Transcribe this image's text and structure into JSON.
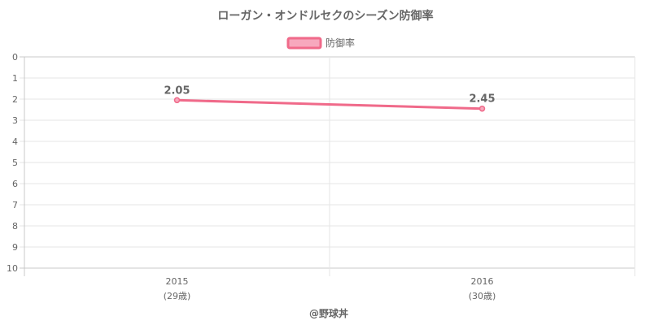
{
  "chart_data": {
    "type": "line",
    "title": "ローガン・オンドルセクのシーズン防御率",
    "x": [
      "2015",
      "2016"
    ],
    "x_sublabels": [
      "(29歳)",
      "(30歳)"
    ],
    "series": [
      {
        "name": "防御率",
        "values": [
          2.05,
          2.45
        ],
        "data_labels": [
          "2.05",
          "2.45"
        ]
      }
    ],
    "ylim": [
      0,
      10
    ],
    "y_reversed": true,
    "y_ticks": [
      "0",
      "1",
      "2",
      "3",
      "4",
      "5",
      "6",
      "7",
      "8",
      "9",
      "10"
    ],
    "grid": true,
    "legend_position": "top-center",
    "colors": {
      "line": "#f06a8a",
      "fill": "#f7a8bd",
      "grid": "#e6e6e6",
      "axis": "#c8c8c8"
    }
  },
  "credit": "@野球丼"
}
